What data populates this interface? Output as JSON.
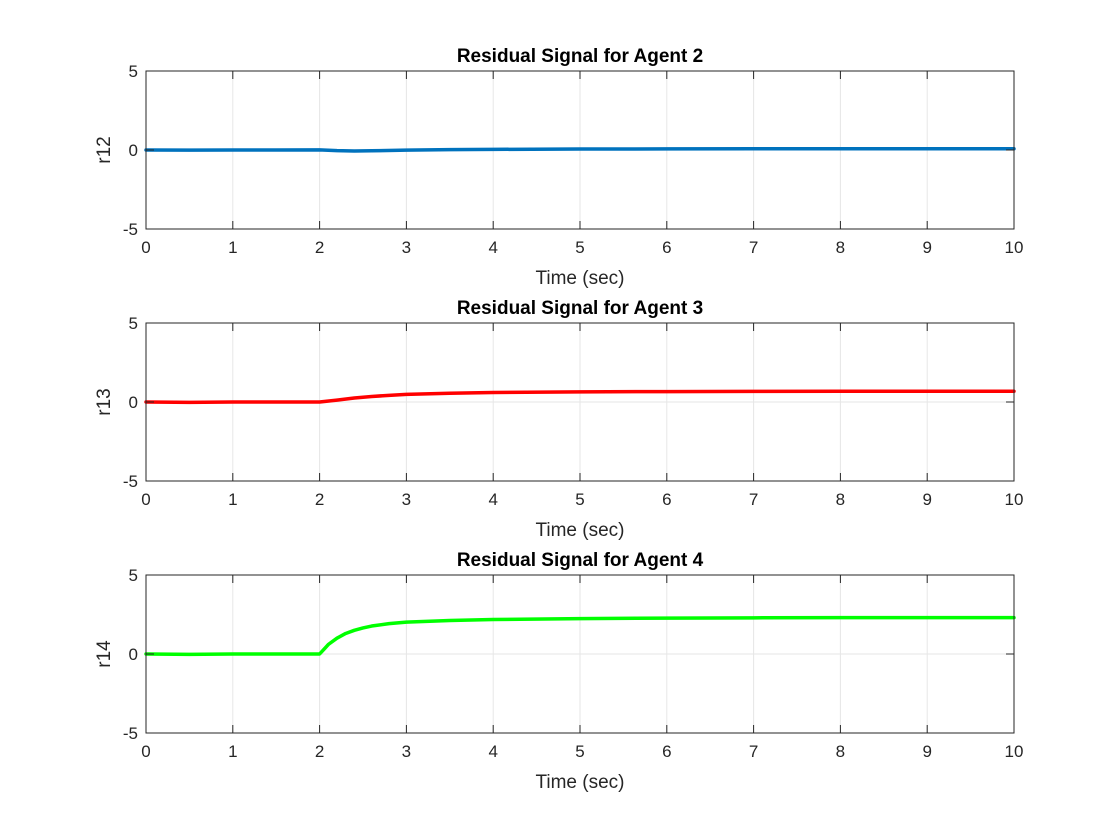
{
  "figure": {
    "background": "#ffffff"
  },
  "chart_data": [
    {
      "type": "line",
      "title": "Residual Signal for Agent 2",
      "xlabel": "Time (sec)",
      "ylabel": "r12",
      "xlim": [
        0,
        10
      ],
      "ylim": [
        -5,
        5
      ],
      "xticks": [
        "0",
        "1",
        "2",
        "3",
        "4",
        "5",
        "6",
        "7",
        "8",
        "9",
        "10"
      ],
      "yticks": [
        "-5",
        "0",
        "5"
      ],
      "grid": true,
      "series": [
        {
          "color": "#0072BD",
          "x": [
            0,
            0.5,
            1,
            1.5,
            2,
            2.2,
            2.4,
            2.6,
            3,
            3.5,
            4,
            5,
            6,
            7,
            8,
            9,
            10
          ],
          "y": [
            0,
            -0.01,
            0,
            0,
            0.01,
            -0.04,
            -0.06,
            -0.05,
            -0.01,
            0.02,
            0.04,
            0.06,
            0.07,
            0.08,
            0.08,
            0.08,
            0.08
          ]
        }
      ]
    },
    {
      "type": "line",
      "title": "Residual Signal for Agent 3",
      "xlabel": "Time (sec)",
      "ylabel": "r13",
      "xlim": [
        0,
        10
      ],
      "ylim": [
        -5,
        5
      ],
      "xticks": [
        "0",
        "1",
        "2",
        "3",
        "4",
        "5",
        "6",
        "7",
        "8",
        "9",
        "10"
      ],
      "yticks": [
        "-5",
        "0",
        "5"
      ],
      "grid": true,
      "series": [
        {
          "color": "#FF0000",
          "x": [
            0,
            0.5,
            1,
            1.5,
            2,
            2.2,
            2.4,
            2.6,
            2.8,
            3,
            3.5,
            4,
            5,
            6,
            7,
            8,
            9,
            10
          ],
          "y": [
            0,
            -0.02,
            0,
            0,
            0,
            0.12,
            0.25,
            0.35,
            0.42,
            0.48,
            0.55,
            0.6,
            0.64,
            0.66,
            0.67,
            0.68,
            0.68,
            0.68
          ]
        }
      ]
    },
    {
      "type": "line",
      "title": "Residual Signal for Agent 4",
      "xlabel": "Time (sec)",
      "ylabel": "r14",
      "xlim": [
        0,
        10
      ],
      "ylim": [
        -5,
        5
      ],
      "xticks": [
        "0",
        "1",
        "2",
        "3",
        "4",
        "5",
        "6",
        "7",
        "8",
        "9",
        "10"
      ],
      "yticks": [
        "-5",
        "0",
        "5"
      ],
      "grid": true,
      "series": [
        {
          "color": "#00FF00",
          "x": [
            0,
            0.5,
            1,
            1.5,
            2,
            2.05,
            2.1,
            2.2,
            2.3,
            2.4,
            2.5,
            2.6,
            2.8,
            3,
            3.5,
            4,
            5,
            6,
            7,
            8,
            9,
            10
          ],
          "y": [
            0,
            -0.02,
            0,
            0,
            0,
            0.3,
            0.6,
            1.0,
            1.3,
            1.5,
            1.65,
            1.77,
            1.92,
            2.02,
            2.12,
            2.18,
            2.24,
            2.27,
            2.29,
            2.3,
            2.3,
            2.3
          ]
        }
      ]
    }
  ]
}
